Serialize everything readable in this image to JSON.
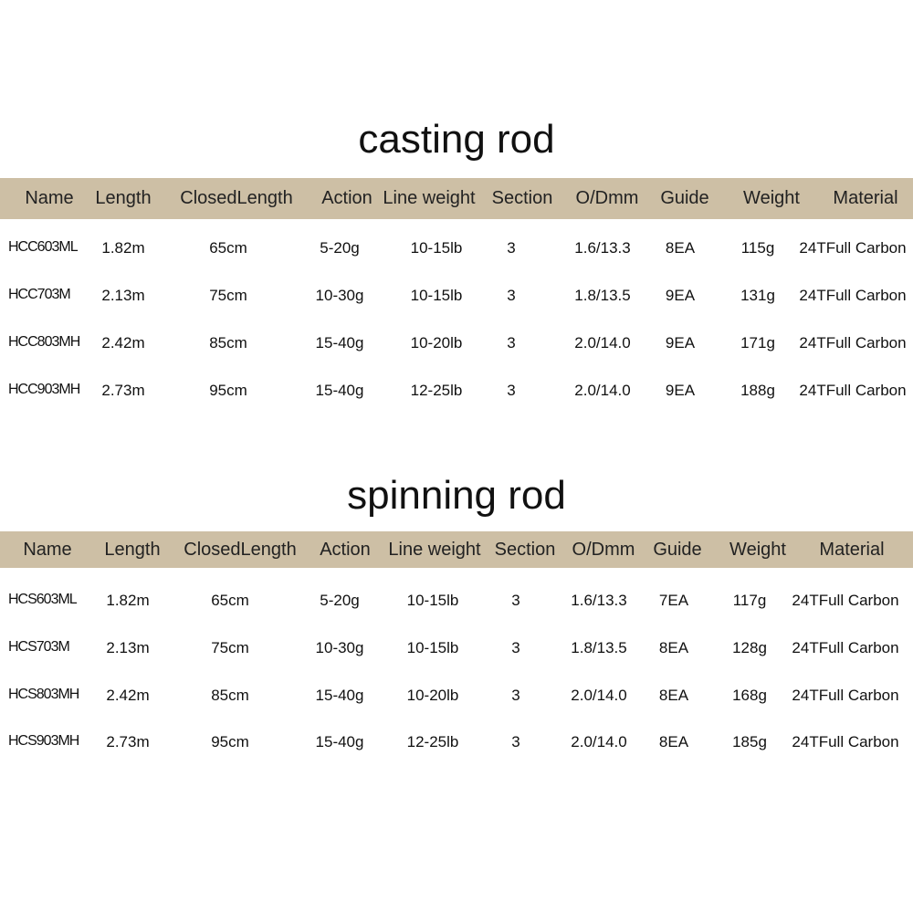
{
  "colors": {
    "header_band": "#cdbfa5",
    "text": "#111111",
    "background": "#ffffff"
  },
  "tables": [
    {
      "title": "casting rod",
      "headers": [
        "Name",
        "Length",
        "ClosedLength",
        "Action",
        "Line weight",
        "Section",
        "O/Dmm",
        "Guide",
        "Weight",
        "Material"
      ],
      "rows": [
        [
          "HCC603ML",
          "1.82m",
          "65cm",
          "5-20g",
          "10-15lb",
          "3",
          "1.6/13.3",
          "8EA",
          "115g",
          "24TFull Carbon"
        ],
        [
          "HCC703M",
          "2.13m",
          "75cm",
          "10-30g",
          "10-15lb",
          "3",
          "1.8/13.5",
          "9EA",
          "131g",
          "24TFull Carbon"
        ],
        [
          "HCC803MH",
          "2.42m",
          "85cm",
          "15-40g",
          "10-20lb",
          "3",
          "2.0/14.0",
          "9EA",
          "171g",
          "24TFull Carbon"
        ],
        [
          "HCC903MH",
          "2.73m",
          "95cm",
          "15-40g",
          "12-25lb",
          "3",
          "2.0/14.0",
          "9EA",
          "188g",
          "24TFull Carbon"
        ]
      ]
    },
    {
      "title": "spinning  rod",
      "headers": [
        "Name",
        "Length",
        "ClosedLength",
        "Action",
        "Line weight",
        "Section",
        "O/Dmm",
        "Guide",
        "Weight",
        "Material"
      ],
      "rows": [
        [
          "HCS603ML",
          "1.82m",
          "65cm",
          "5-20g",
          "10-15lb",
          "3",
          "1.6/13.3",
          "7EA",
          "117g",
          "24TFull Carbon"
        ],
        [
          "HCS703M",
          "2.13m",
          "75cm",
          "10-30g",
          "10-15lb",
          "3",
          "1.8/13.5",
          "8EA",
          "128g",
          "24TFull Carbon"
        ],
        [
          "HCS803MH",
          "2.42m",
          "85cm",
          "15-40g",
          "10-20lb",
          "3",
          "2.0/14.0",
          "8EA",
          "168g",
          "24TFull Carbon"
        ],
        [
          "HCS903MH",
          "2.73m",
          "95cm",
          "15-40g",
          "12-25lb",
          "3",
          "2.0/14.0",
          "8EA",
          "185g",
          "24TFull Carbon"
        ]
      ]
    }
  ]
}
